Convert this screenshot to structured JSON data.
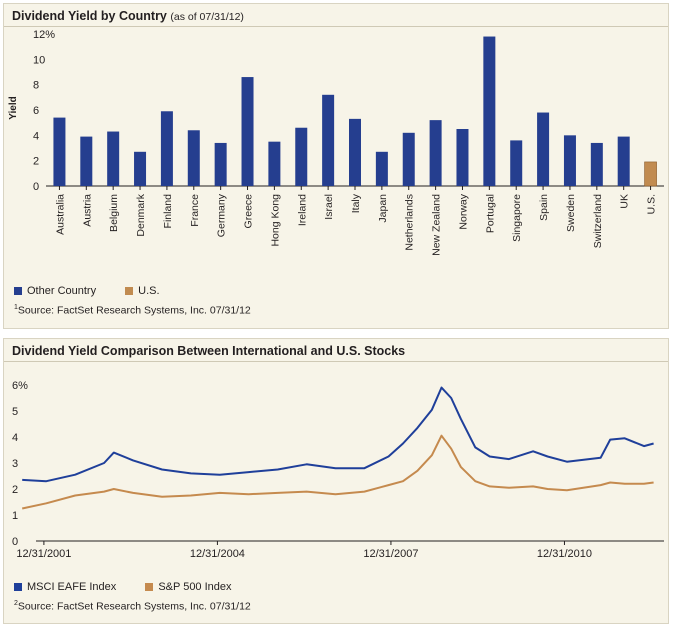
{
  "colors": {
    "other": "#253e8f",
    "us": "#c18b50",
    "eafe": "#1f3f9a",
    "sp500": "#c58a4e"
  },
  "chart1": {
    "title": "Dividend Yield by Country",
    "subtitle": "(as of 07/31/12)",
    "legend": [
      "Other Country",
      "U.S."
    ],
    "source_mark": "1",
    "source": "Source: FactSet Research Systems, Inc. 07/31/12"
  },
  "chart2": {
    "title": "Dividend Yield Comparison Between International and U.S. Stocks",
    "legend": [
      "MSCI EAFE Index",
      "S&P 500 Index"
    ],
    "source_mark": "2",
    "source": "Source: FactSet Research Systems, Inc. 07/31/12"
  },
  "chart_data": [
    {
      "type": "bar",
      "title": "Dividend Yield by Country",
      "subtitle": "(as of 07/31/12)",
      "ylabel": "Yield",
      "ylim": [
        0,
        12
      ],
      "yticks": [
        "0",
        "2",
        "4",
        "6",
        "8",
        "10",
        "12%"
      ],
      "grid": false,
      "legend_position": "bottom-left",
      "categories": [
        "Australia",
        "Austria",
        "Belgium",
        "Denmark",
        "Finland",
        "France",
        "Germany",
        "Greece",
        "Hong Kong",
        "Ireland",
        "Israel",
        "Italy",
        "Japan",
        "Netherlands",
        "New Zealand",
        "Norway",
        "Portugal",
        "Singapore",
        "Spain",
        "Sweden",
        "Switzerland",
        "UK",
        "U.S."
      ],
      "groups": [
        "Other Country",
        "Other Country",
        "Other Country",
        "Other Country",
        "Other Country",
        "Other Country",
        "Other Country",
        "Other Country",
        "Other Country",
        "Other Country",
        "Other Country",
        "Other Country",
        "Other Country",
        "Other Country",
        "Other Country",
        "Other Country",
        "Other Country",
        "Other Country",
        "Other Country",
        "Other Country",
        "Other Country",
        "Other Country",
        "U.S."
      ],
      "values": [
        5.4,
        3.9,
        4.3,
        2.7,
        5.9,
        4.4,
        3.4,
        8.6,
        3.5,
        4.6,
        7.2,
        5.3,
        2.7,
        4.2,
        5.2,
        4.5,
        11.8,
        3.6,
        5.8,
        4.0,
        3.4,
        3.9,
        1.9
      ]
    },
    {
      "type": "line",
      "title": "Dividend Yield Comparison Between International and U.S. Stocks",
      "ylim": [
        0,
        6
      ],
      "yticks": [
        "0",
        "1",
        "2",
        "3",
        "4",
        "5",
        "6%"
      ],
      "xticks": [
        "12/31/2001",
        "12/31/2004",
        "12/31/2007",
        "12/31/2010"
      ],
      "grid": false,
      "legend_position": "bottom-left",
      "x": [
        "2001-08",
        "2002-01",
        "2002-07",
        "2003-01",
        "2003-03",
        "2003-07",
        "2004-01",
        "2004-07",
        "2005-01",
        "2005-07",
        "2006-01",
        "2006-07",
        "2007-01",
        "2007-07",
        "2007-12",
        "2008-03",
        "2008-06",
        "2008-09",
        "2008-11",
        "2009-01",
        "2009-03",
        "2009-06",
        "2009-09",
        "2010-01",
        "2010-06",
        "2010-09",
        "2011-01",
        "2011-08",
        "2011-10",
        "2012-01",
        "2012-05",
        "2012-07"
      ],
      "series": [
        {
          "name": "MSCI EAFE Index",
          "values": [
            2.35,
            2.3,
            2.55,
            3.0,
            3.4,
            3.1,
            2.75,
            2.6,
            2.55,
            2.65,
            2.75,
            2.95,
            2.8,
            2.8,
            3.25,
            3.75,
            4.35,
            5.05,
            5.9,
            5.5,
            4.7,
            3.6,
            3.25,
            3.15,
            3.45,
            3.25,
            3.05,
            3.2,
            3.9,
            3.95,
            3.65,
            3.75
          ]
        },
        {
          "name": "S&P 500 Index",
          "values": [
            1.25,
            1.45,
            1.75,
            1.9,
            2.0,
            1.85,
            1.7,
            1.75,
            1.85,
            1.8,
            1.85,
            1.9,
            1.8,
            1.9,
            2.15,
            2.3,
            2.7,
            3.3,
            4.05,
            3.55,
            2.85,
            2.3,
            2.1,
            2.05,
            2.1,
            2.0,
            1.95,
            2.15,
            2.25,
            2.2,
            2.2,
            2.25
          ]
        }
      ]
    }
  ]
}
